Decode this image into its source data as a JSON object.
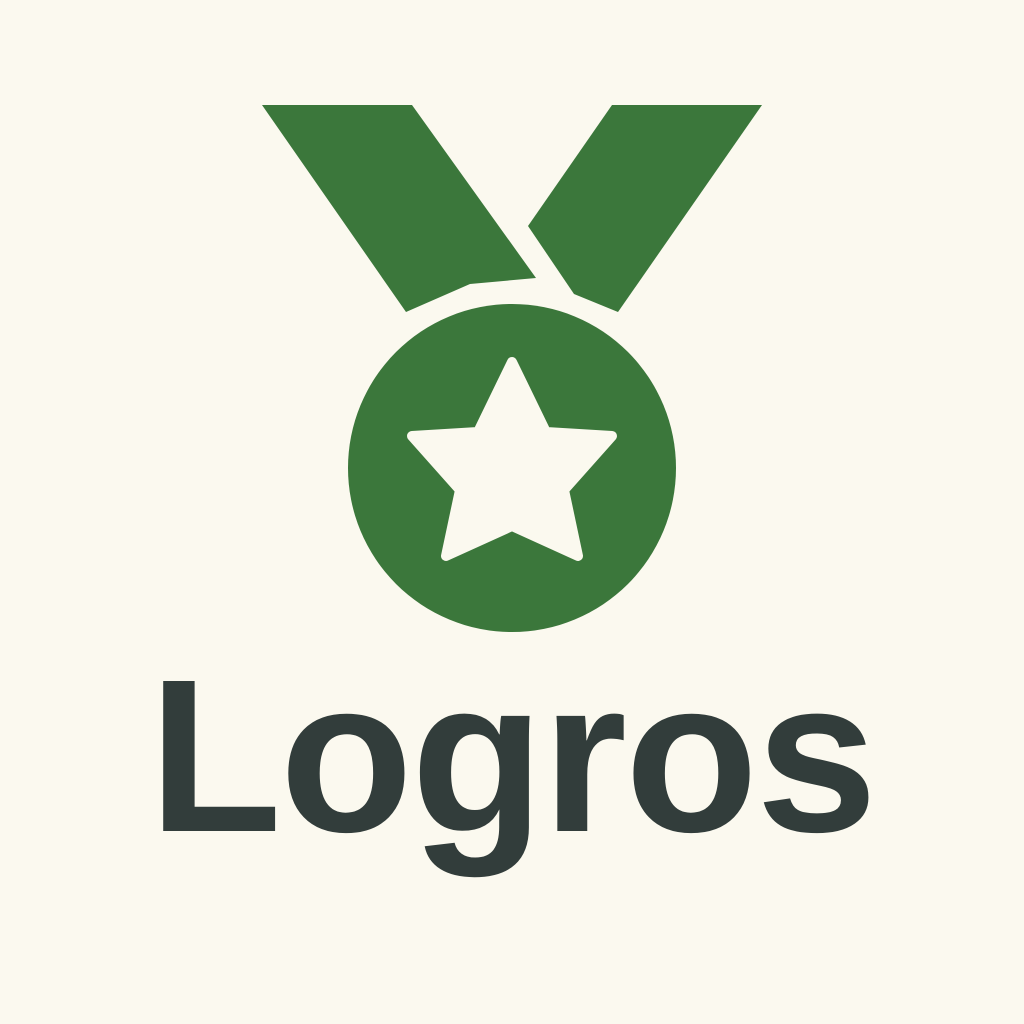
{
  "colors": {
    "background": "#FBF9EF",
    "medal_green": "#3B773B",
    "star_fill": "#FBF9EF",
    "title_text": "#323D3B"
  },
  "emblem": {
    "icon": "medal-star-icon"
  },
  "title": {
    "text": "Logros"
  }
}
